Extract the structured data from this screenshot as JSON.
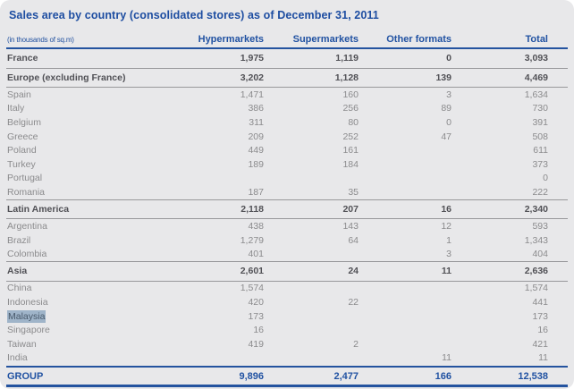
{
  "title": "Sales area by country (consolidated stores) as of December 31, 2011",
  "table": {
    "unit_note": "(in thousands of sq.m)",
    "columns": [
      "Hypermarkets",
      "Supermarkets",
      "Other formats",
      "Total"
    ],
    "rows": [
      {
        "label": "France",
        "type": "section",
        "values": [
          "1,975",
          "1,119",
          "0",
          "3,093"
        ]
      },
      {
        "label": "Europe (excluding France)",
        "type": "section",
        "values": [
          "3,202",
          "1,128",
          "139",
          "4,469"
        ]
      },
      {
        "label": "Spain",
        "type": "normal",
        "values": [
          "1,471",
          "160",
          "3",
          "1,634"
        ]
      },
      {
        "label": "Italy",
        "type": "normal",
        "values": [
          "386",
          "256",
          "89",
          "730"
        ]
      },
      {
        "label": "Belgium",
        "type": "normal",
        "values": [
          "311",
          "80",
          "0",
          "391"
        ]
      },
      {
        "label": "Greece",
        "type": "normal",
        "values": [
          "209",
          "252",
          "47",
          "508"
        ]
      },
      {
        "label": "Poland",
        "type": "normal",
        "values": [
          "449",
          "161",
          "",
          "611"
        ]
      },
      {
        "label": "Turkey",
        "type": "normal",
        "values": [
          "189",
          "184",
          "",
          "373"
        ]
      },
      {
        "label": "Portugal",
        "type": "normal",
        "values": [
          "",
          "",
          "",
          "0"
        ]
      },
      {
        "label": "Romania",
        "type": "normal",
        "values": [
          "187",
          "35",
          "",
          "222"
        ]
      },
      {
        "label": "Latin America",
        "type": "section",
        "values": [
          "2,118",
          "207",
          "16",
          "2,340"
        ]
      },
      {
        "label": "Argentina",
        "type": "normal",
        "values": [
          "438",
          "143",
          "12",
          "593"
        ]
      },
      {
        "label": "Brazil",
        "type": "normal",
        "values": [
          "1,279",
          "64",
          "1",
          "1,343"
        ]
      },
      {
        "label": "Colombia",
        "type": "normal",
        "values": [
          "401",
          "",
          "3",
          "404"
        ]
      },
      {
        "label": "Asia",
        "type": "section",
        "values": [
          "2,601",
          "24",
          "11",
          "2,636"
        ]
      },
      {
        "label": "China",
        "type": "normal",
        "values": [
          "1,574",
          "",
          "",
          "1,574"
        ]
      },
      {
        "label": "Indonesia",
        "type": "normal",
        "values": [
          "420",
          "22",
          "",
          "441"
        ]
      },
      {
        "label": "Malaysia",
        "type": "normal",
        "highlighted": true,
        "values": [
          "173",
          "",
          "",
          "173"
        ]
      },
      {
        "label": "Singapore",
        "type": "normal",
        "values": [
          "16",
          "",
          "",
          "16"
        ]
      },
      {
        "label": "Taiwan",
        "type": "normal",
        "values": [
          "419",
          "2",
          "",
          "421"
        ]
      },
      {
        "label": "India",
        "type": "normal",
        "values": [
          "",
          "",
          "11",
          "11"
        ]
      },
      {
        "label": "GROUP",
        "type": "group",
        "values": [
          "9,896",
          "2,477",
          "166",
          "12,538"
        ]
      }
    ]
  },
  "colors": {
    "accent_blue": "#24539f",
    "card_background": "#e8e8ea",
    "normal_text": "#8b8b8d",
    "section_text": "#515156",
    "rule_gray": "#98989b",
    "selection_highlight": "#9fb4c9"
  }
}
